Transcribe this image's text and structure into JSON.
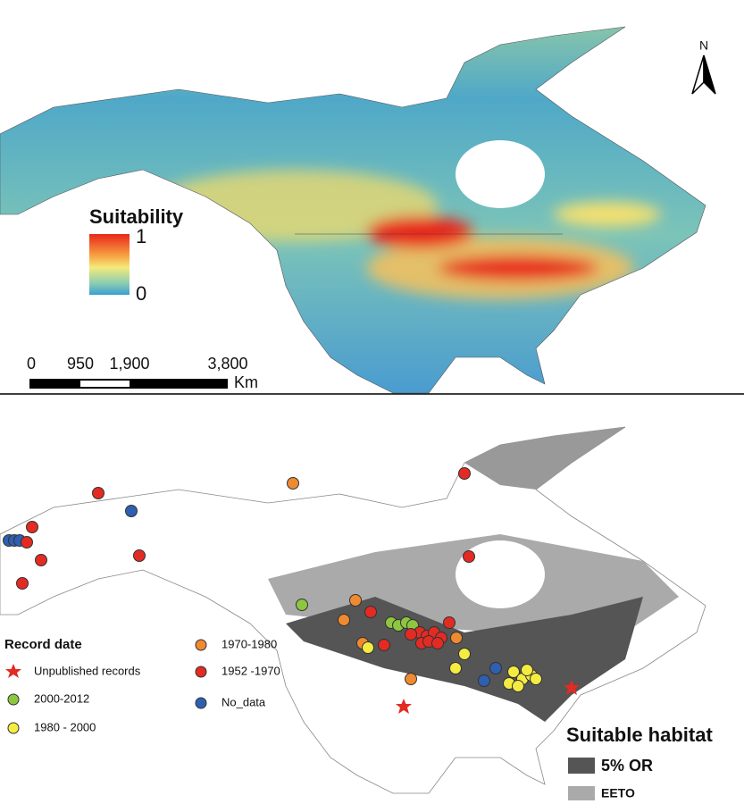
{
  "suitability_map": {
    "legend": {
      "title": "Suitability",
      "high": "1",
      "low": "0"
    },
    "north": "N",
    "scale_bar": {
      "labels": [
        "0",
        "950",
        "1,900",
        "3,800"
      ],
      "unit": "Km"
    }
  },
  "records_map": {
    "record_legend": {
      "title": "Record date",
      "entries": [
        "Unpublished records",
        "2000-2012",
        "1980 - 2000",
        "1970-1980",
        "1952 -1970",
        "No_data"
      ]
    },
    "habitat_legend": {
      "title": "Suitable habitat",
      "entries": [
        "5% OR",
        "EETO"
      ]
    }
  }
}
